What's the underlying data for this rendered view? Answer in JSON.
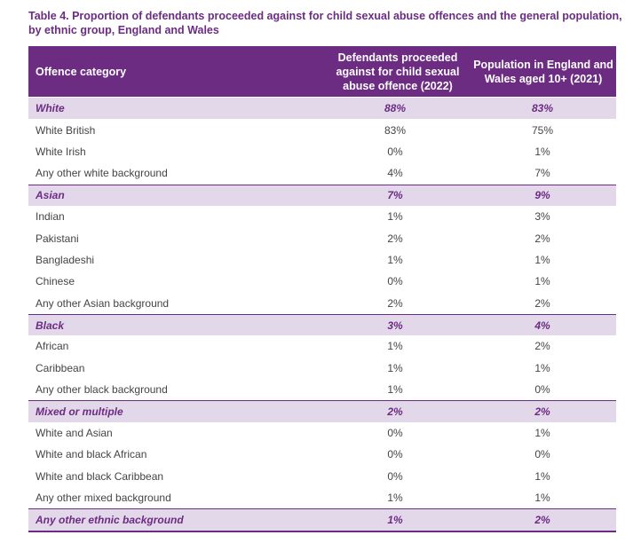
{
  "caption": "Table 4. Proportion of defendants proceeded against for child sexual abuse offences and the general population, by ethnic group, England and Wales",
  "table": {
    "headers": {
      "category": "Offence category",
      "defendants": "Defendants proceeded against for child sexual abuse offence (2022)",
      "population": "Population in England and Wales aged 10+ (2021)"
    },
    "rows": [
      {
        "label": "White",
        "defendants": "88%",
        "population": "83%",
        "group": true
      },
      {
        "label": "White British",
        "defendants": "83%",
        "population": "75%",
        "group": false
      },
      {
        "label": "White Irish",
        "defendants": "0%",
        "population": "1%",
        "group": false
      },
      {
        "label": "Any other white background",
        "defendants": "4%",
        "population": "7%",
        "group": false
      },
      {
        "label": "Asian",
        "defendants": "7%",
        "population": "9%",
        "group": true
      },
      {
        "label": "Indian",
        "defendants": "1%",
        "population": "3%",
        "group": false
      },
      {
        "label": "Pakistani",
        "defendants": "2%",
        "population": "2%",
        "group": false
      },
      {
        "label": "Bangladeshi",
        "defendants": "1%",
        "population": "1%",
        "group": false
      },
      {
        "label": "Chinese",
        "defendants": "0%",
        "population": "1%",
        "group": false
      },
      {
        "label": "Any other Asian background",
        "defendants": "2%",
        "population": "2%",
        "group": false
      },
      {
        "label": "Black",
        "defendants": "3%",
        "population": "4%",
        "group": true
      },
      {
        "label": "African",
        "defendants": "1%",
        "population": "2%",
        "group": false
      },
      {
        "label": "Caribbean",
        "defendants": "1%",
        "population": "1%",
        "group": false
      },
      {
        "label": "Any other black background",
        "defendants": "1%",
        "population": "0%",
        "group": false
      },
      {
        "label": "Mixed or multiple",
        "defendants": "2%",
        "population": "2%",
        "group": true
      },
      {
        "label": "White and Asian",
        "defendants": "0%",
        "population": "1%",
        "group": false
      },
      {
        "label": "White and black African",
        "defendants": "0%",
        "population": "0%",
        "group": false
      },
      {
        "label": "White and black Caribbean",
        "defendants": "0%",
        "population": "1%",
        "group": false
      },
      {
        "label": "Any other mixed background",
        "defendants": "1%",
        "population": "1%",
        "group": false
      },
      {
        "label": "Any other ethnic background",
        "defendants": "1%",
        "population": "2%",
        "group": true
      }
    ]
  },
  "colors": {
    "accent": "#6b2c82",
    "group_row_bg": "#e3d8ea",
    "body_text": "#444444"
  }
}
